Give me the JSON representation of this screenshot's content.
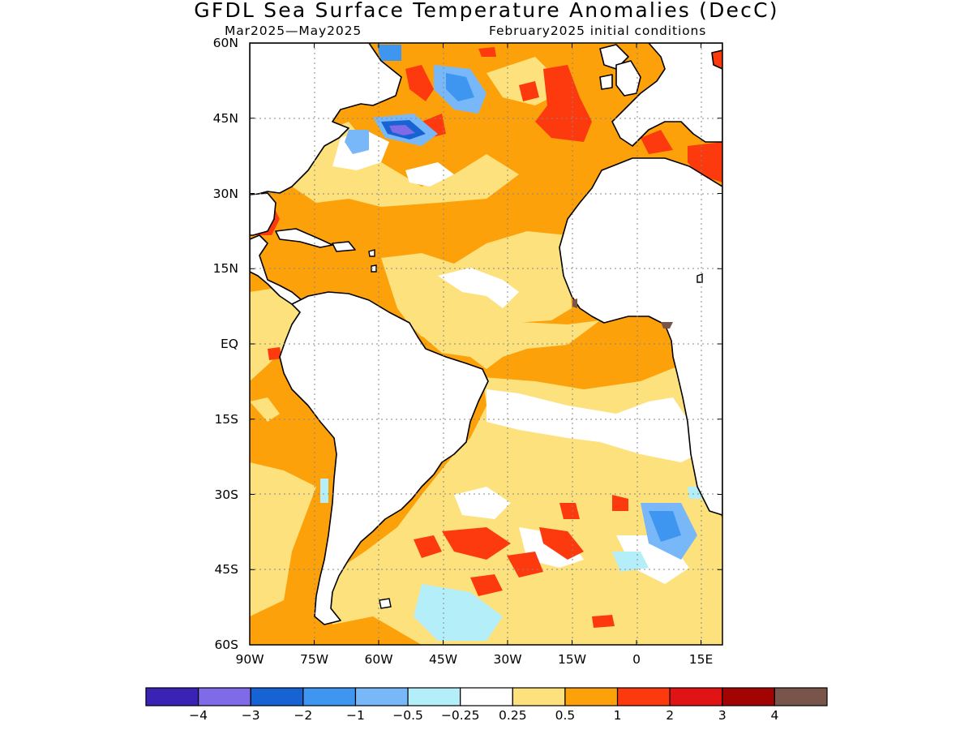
{
  "header": {
    "title": "GFDL Sea Surface Temperature Anomalies (DecC)",
    "subtitle_left": "Mar2025—May2025",
    "subtitle_right": "February2025 initial conditions"
  },
  "axes": {
    "lat_labels": [
      "60N",
      "45N",
      "30N",
      "15N",
      "EQ",
      "15S",
      "30S",
      "45S",
      "60S"
    ],
    "lat_values": [
      60,
      45,
      30,
      15,
      0,
      -15,
      -30,
      -45,
      -60
    ],
    "lon_labels": [
      "90W",
      "75W",
      "60W",
      "45W",
      "30W",
      "15W",
      "0",
      "15E"
    ],
    "lon_values": [
      -90,
      -75,
      -60,
      -45,
      -30,
      -15,
      0,
      15
    ],
    "lon_range": [
      -90,
      20
    ],
    "lat_range": [
      -60,
      60
    ],
    "grid": "dotted"
  },
  "colorbar": {
    "colors": [
      "#3a22b4",
      "#7f6ae8",
      "#1863d4",
      "#3e96f0",
      "#78b8f8",
      "#b4eef8",
      "#ffffff",
      "#fde17c",
      "#fda10a",
      "#fc3a0d",
      "#e01414",
      "#a20404",
      "#79544a"
    ],
    "labels": [
      "−4",
      "−3",
      "−2",
      "−1",
      "−0.5",
      "−0.25",
      "0.25",
      "0.5",
      "1",
      "2",
      "3",
      "4"
    ]
  }
}
